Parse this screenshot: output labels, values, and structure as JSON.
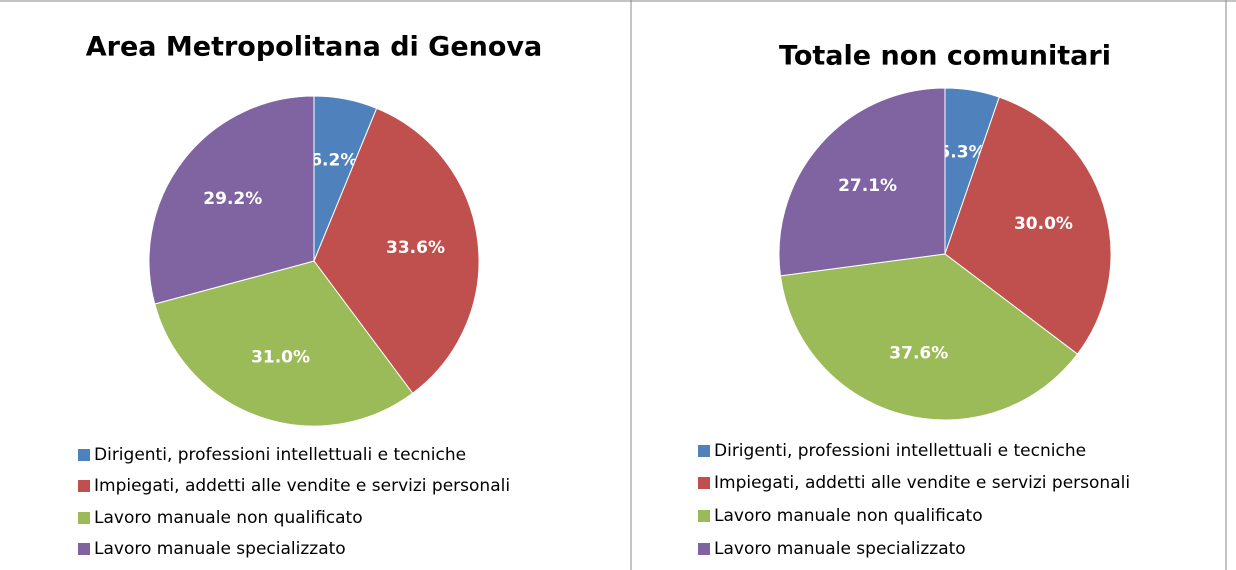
{
  "chart_data": [
    {
      "type": "pie",
      "title": "Area Metropolitana di Genova",
      "categories": [
        "Dirigenti, professioni intellettuali e tecniche",
        "Impiegati, addetti alle vendite e servizi personali",
        "Lavoro manuale non qualificato",
        "Lavoro manuale specializzato"
      ],
      "values": [
        6.2,
        33.6,
        31.0,
        29.2
      ],
      "value_labels": [
        "6.2%",
        "33.6%",
        "31.0%",
        "29.2%"
      ],
      "colors": [
        "#4f81bd",
        "#c0504d",
        "#9bbb59",
        "#8064a2"
      ],
      "legend": "bottom"
    },
    {
      "type": "pie",
      "title": "Totale non comunitari",
      "categories": [
        "Dirigenti, professioni intellettuali e tecniche",
        "Impiegati, addetti alle vendite e servizi personali",
        "Lavoro manuale non qualificato",
        "Lavoro manuale specializzato"
      ],
      "values": [
        5.3,
        30.0,
        37.6,
        27.1
      ],
      "value_labels": [
        "5.3%",
        "30.0%",
        "37.6%",
        "27.1%"
      ],
      "colors": [
        "#4f81bd",
        "#c0504d",
        "#9bbb59",
        "#8064a2"
      ],
      "legend": "bottom"
    }
  ]
}
